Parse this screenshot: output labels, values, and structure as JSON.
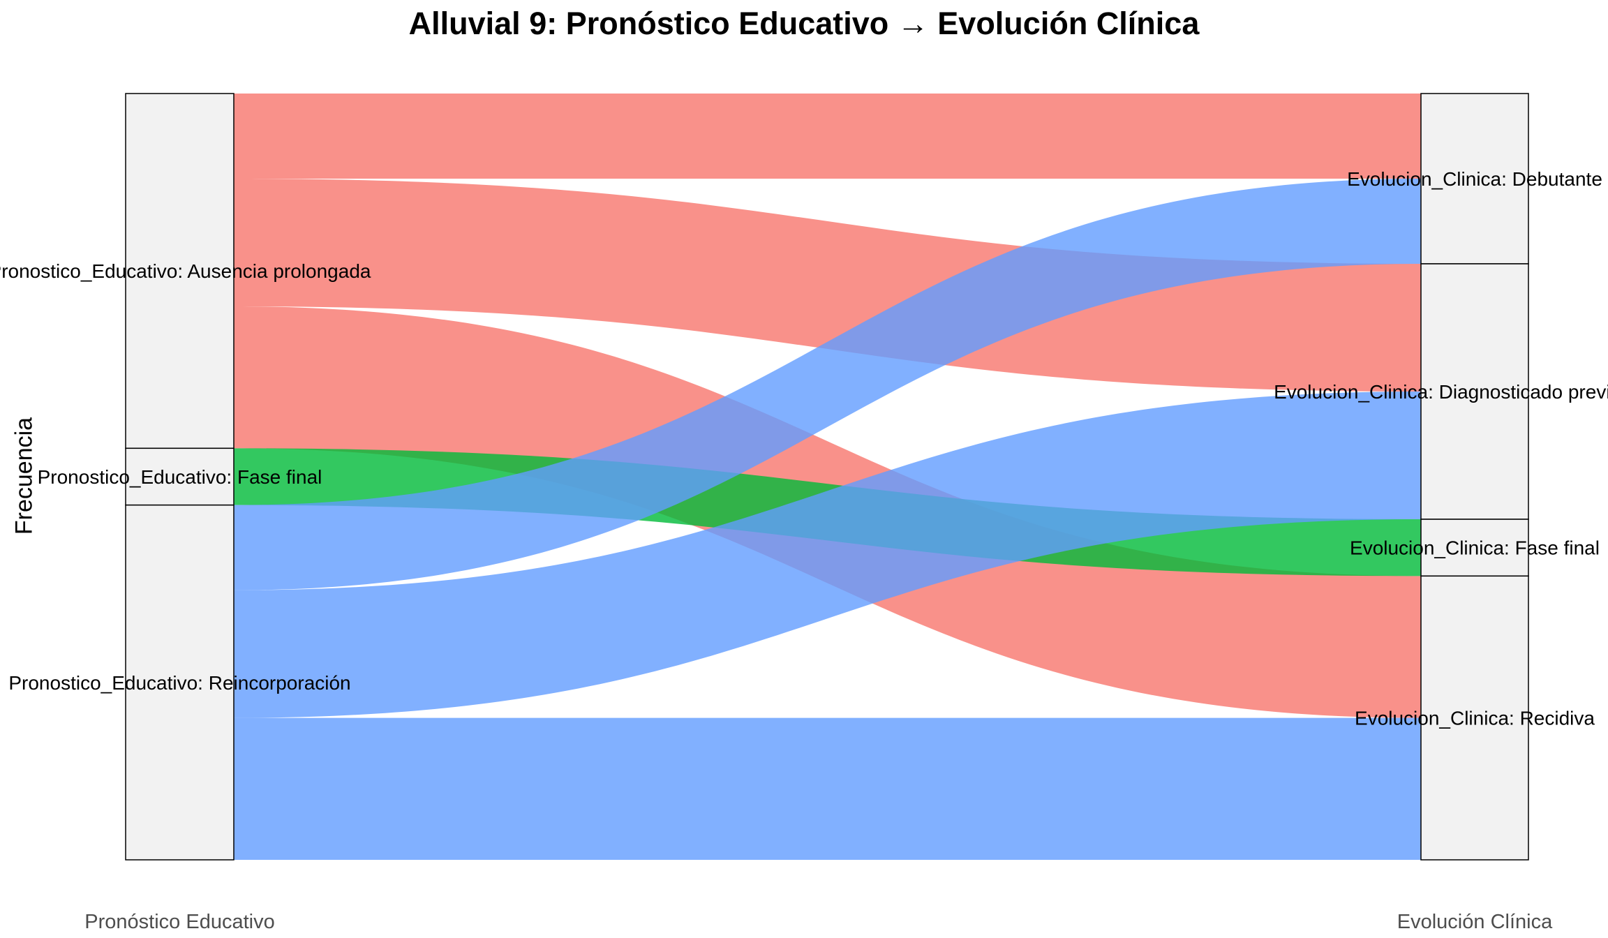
{
  "chart_data": {
    "type": "alluvial",
    "title": "Alluvial 9: Pronóstico Educativo → Evolución Clínica",
    "xlabel": "",
    "ylabel": "Frecuencia",
    "axes": [
      "Pronóstico Educativo",
      "Evolución Clínica"
    ],
    "total": 54,
    "left_strata": [
      {
        "label": "Pronostico_Educativo: Ausencia prolongada",
        "count": 25,
        "color": "#F8766D"
      },
      {
        "label": "Pronostico_Educativo: Fase final",
        "count": 4,
        "color": "#00BA38"
      },
      {
        "label": "Pronostico_Educativo: Reincorporación",
        "count": 25,
        "color": "#619CFF"
      }
    ],
    "right_strata": [
      {
        "label": "Evolucion_Clinica: Debutante",
        "count": 12
      },
      {
        "label": "Evolucion_Clinica: Diagnosticado previamente",
        "count": 18
      },
      {
        "label": "Evolucion_Clinica: Fase final",
        "count": 4
      },
      {
        "label": "Evolucion_Clinica: Recidiva",
        "count": 20
      }
    ],
    "flows": [
      {
        "from": "Pronostico_Educativo: Ausencia prolongada",
        "to": "Evolucion_Clinica: Debutante",
        "value": 6,
        "color": "#F8766D"
      },
      {
        "from": "Pronostico_Educativo: Ausencia prolongada",
        "to": "Evolucion_Clinica: Diagnosticado previamente",
        "value": 9,
        "color": "#F8766D"
      },
      {
        "from": "Pronostico_Educativo: Ausencia prolongada",
        "to": "Evolucion_Clinica: Recidiva",
        "value": 10,
        "color": "#F8766D"
      },
      {
        "from": "Pronostico_Educativo: Fase final",
        "to": "Evolucion_Clinica: Fase final",
        "value": 4,
        "color": "#00BA38"
      },
      {
        "from": "Pronostico_Educativo: Reincorporación",
        "to": "Evolucion_Clinica: Debutante",
        "value": 6,
        "color": "#619CFF"
      },
      {
        "from": "Pronostico_Educativo: Reincorporación",
        "to": "Evolucion_Clinica: Diagnosticado previamente",
        "value": 9,
        "color": "#619CFF"
      },
      {
        "from": "Pronostico_Educativo: Reincorporación",
        "to": "Evolucion_Clinica: Recidiva",
        "value": 10,
        "color": "#619CFF"
      }
    ],
    "stratum_fill": "#F2F2F2",
    "stratum_border": "#000000"
  }
}
